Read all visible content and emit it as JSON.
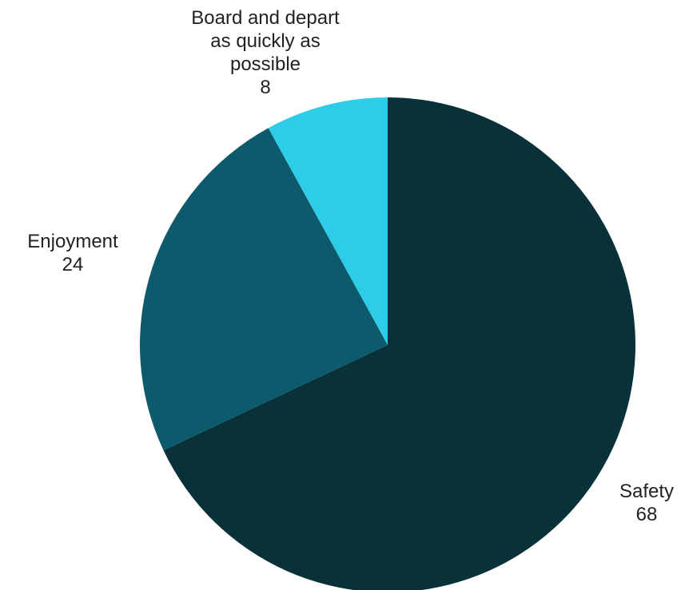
{
  "chart_data": {
    "type": "pie",
    "title": "",
    "slices": [
      {
        "label": [
          "Safety"
        ],
        "value": 68,
        "value_label": "68",
        "color": "#08313A"
      },
      {
        "label": [
          "Enjoyment"
        ],
        "value": 24,
        "value_label": "24",
        "color": "#0C5A6C"
      },
      {
        "label": [
          "Board and depart",
          "as quickly as",
          "possible"
        ],
        "value": 8,
        "value_label": "8",
        "color": "#2DCCE8"
      }
    ],
    "start_angle": "12 o'clock",
    "direction": "clockwise",
    "legend": "none",
    "label_placement": "outside"
  }
}
